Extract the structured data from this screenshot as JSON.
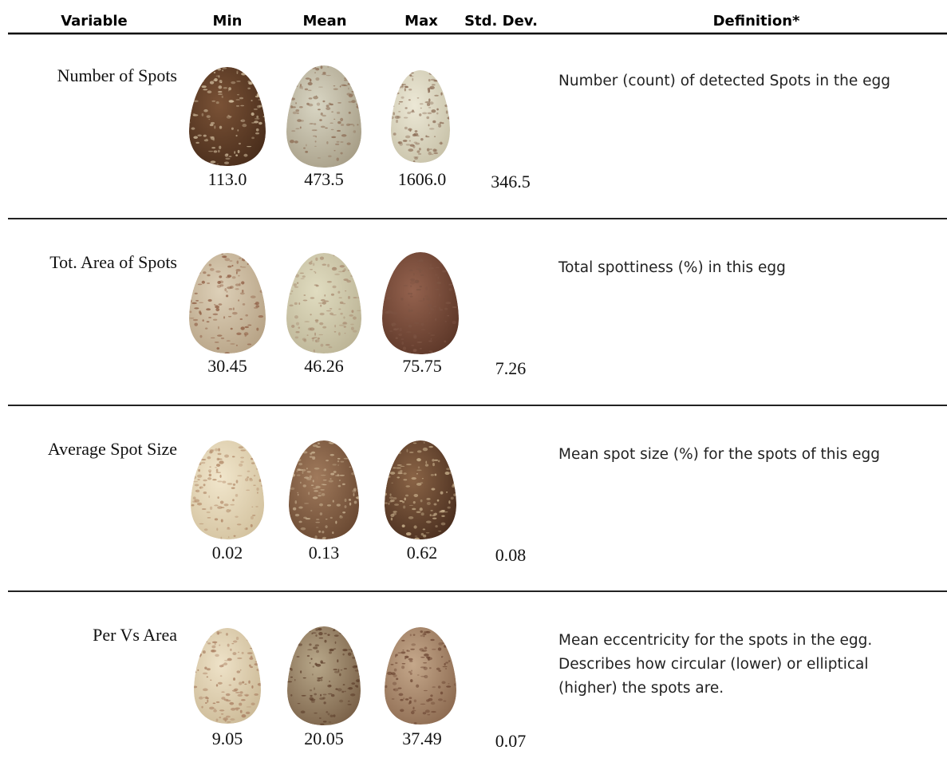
{
  "table": {
    "header": [
      "Variable",
      "Min",
      "Mean",
      "Max",
      "Std. Dev.",
      "Definition*"
    ],
    "rows": [
      {
        "variable": "Number of Spots",
        "min": "113.0",
        "mean": "473.5",
        "max": "1606.0",
        "std_dev": "346.5",
        "definition": [
          "Number (count) of detected Spots in the egg"
        ]
      },
      {
        "variable": "Tot. Area of Spots",
        "min": "30.45",
        "mean": "46.26",
        "max": "75.75",
        "std_dev": "7.26",
        "definition": [
          "Total spottiness (%) in this egg"
        ]
      },
      {
        "variable": "Average Spot Size",
        "min": "0.02",
        "mean": "0.13",
        "max": "0.62",
        "std_dev": "0.08",
        "definition": [
          "Mean spot size (%) for the spots of this egg"
        ]
      },
      {
        "variable": "Per Vs Area",
        "min": "9.05",
        "mean": "20.05",
        "max": "37.49",
        "std_dev": "0.07",
        "definition": [
          "Mean eccentricity for the spots in the egg.",
          "Describes how circular (lower) or elliptical",
          "(higher) the spots are."
        ]
      }
    ]
  }
}
